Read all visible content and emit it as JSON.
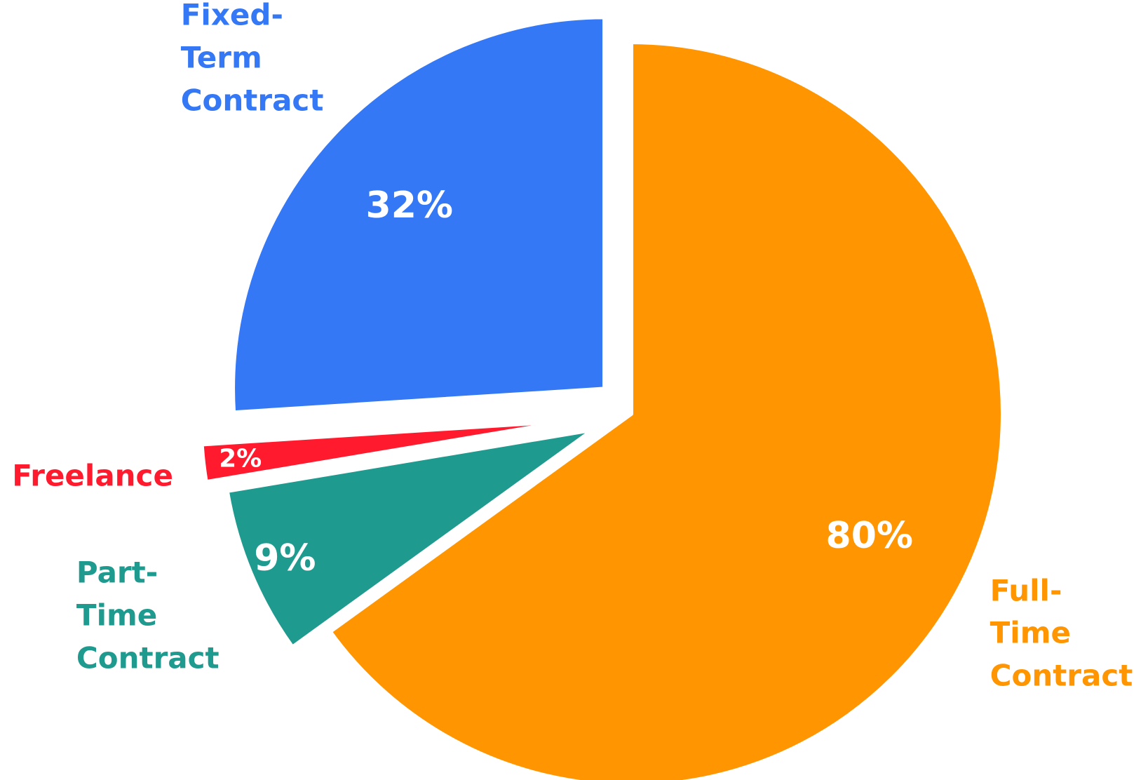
{
  "chart_data": {
    "type": "pie",
    "categories": [
      "Full-Time Contract",
      "Part-Time Contract",
      "Freelance",
      "Fixed-Term Contract"
    ],
    "values": [
      80,
      9,
      2,
      32
    ],
    "value_labels": [
      "80%",
      "9%",
      "2%",
      "32%"
    ],
    "colors": [
      "#ff9500",
      "#1f9a8e",
      "#ff1a2e",
      "#3478f6"
    ]
  }
}
